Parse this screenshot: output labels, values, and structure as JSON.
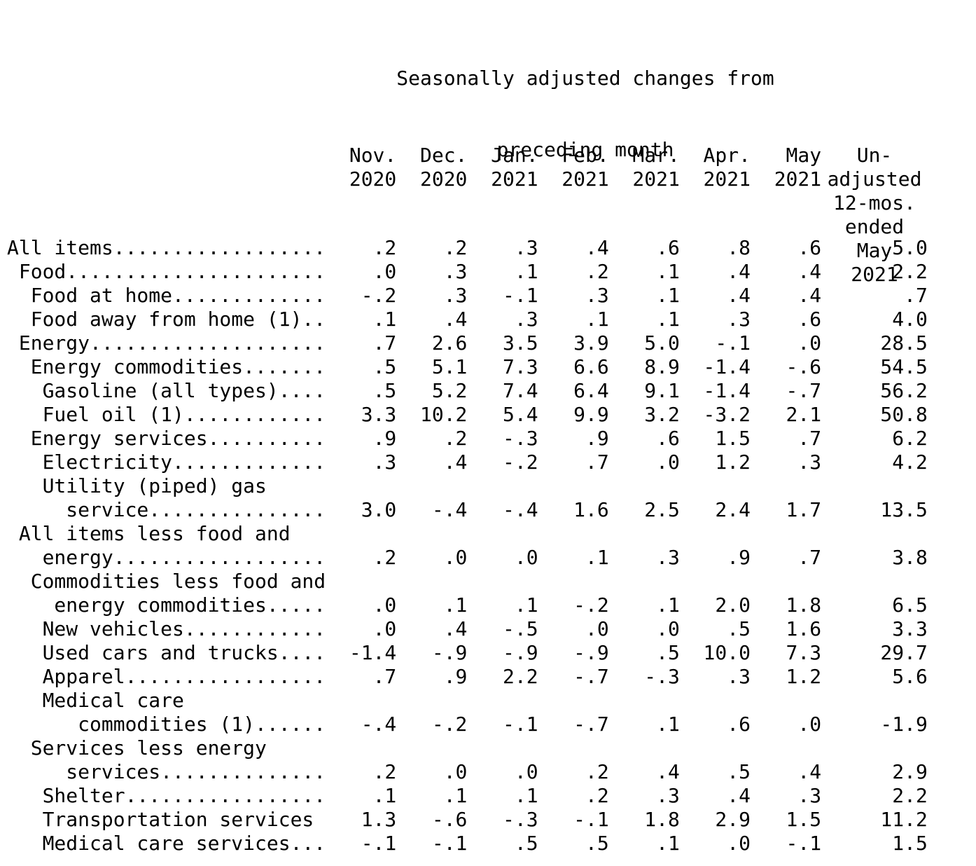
{
  "title": {
    "line1": "Seasonally adjusted changes from",
    "line2": "preceding month"
  },
  "columns": {
    "months": [
      {
        "name": "Nov.",
        "year": "2020"
      },
      {
        "name": "Dec.",
        "year": "2020"
      },
      {
        "name": "Jan.",
        "year": "2021"
      },
      {
        "name": "Feb.",
        "year": "2021"
      },
      {
        "name": "Mar.",
        "year": "2021"
      },
      {
        "name": "Apr.",
        "year": "2021"
      },
      {
        "name": "May",
        "year": "2021"
      }
    ],
    "unadjusted": {
      "lines": [
        "Un-",
        "adjusted",
        "12-mos.",
        "ended",
        "May",
        "2021"
      ]
    }
  },
  "rows": [
    {
      "label": "All items..................",
      "values": [
        ".2",
        ".2",
        ".3",
        ".4",
        ".6",
        ".8",
        ".6",
        "5.0"
      ]
    },
    {
      "label": " Food......................",
      "values": [
        ".0",
        ".3",
        ".1",
        ".2",
        ".1",
        ".4",
        ".4",
        "2.2"
      ]
    },
    {
      "label": "  Food at home.............",
      "values": [
        "-.2",
        ".3",
        "-.1",
        ".3",
        ".1",
        ".4",
        ".4",
        ".7"
      ]
    },
    {
      "label": "  Food away from home (1)..",
      "values": [
        ".1",
        ".4",
        ".3",
        ".1",
        ".1",
        ".3",
        ".6",
        "4.0"
      ]
    },
    {
      "label": " Energy....................",
      "values": [
        ".7",
        "2.6",
        "3.5",
        "3.9",
        "5.0",
        "-.1",
        ".0",
        "28.5"
      ]
    },
    {
      "label": "  Energy commodities.......",
      "values": [
        ".5",
        "5.1",
        "7.3",
        "6.6",
        "8.9",
        "-1.4",
        "-.6",
        "54.5"
      ]
    },
    {
      "label": "   Gasoline (all types)....",
      "values": [
        ".5",
        "5.2",
        "7.4",
        "6.4",
        "9.1",
        "-1.4",
        "-.7",
        "56.2"
      ]
    },
    {
      "label": "   Fuel oil (1)............",
      "values": [
        "3.3",
        "10.2",
        "5.4",
        "9.9",
        "3.2",
        "-3.2",
        "2.1",
        "50.8"
      ]
    },
    {
      "label": "  Energy services..........",
      "values": [
        ".9",
        ".2",
        "-.3",
        ".9",
        ".6",
        "1.5",
        ".7",
        "6.2"
      ]
    },
    {
      "label": "   Electricity.............",
      "values": [
        ".3",
        ".4",
        "-.2",
        ".7",
        ".0",
        "1.2",
        ".3",
        "4.2"
      ]
    },
    {
      "label": "   Utility (piped) gas",
      "values": []
    },
    {
      "label": "     service...............",
      "values": [
        "3.0",
        "-.4",
        "-.4",
        "1.6",
        "2.5",
        "2.4",
        "1.7",
        "13.5"
      ]
    },
    {
      "label": " All items less food and",
      "values": []
    },
    {
      "label": "   energy..................",
      "values": [
        ".2",
        ".0",
        ".0",
        ".1",
        ".3",
        ".9",
        ".7",
        "3.8"
      ]
    },
    {
      "label": "  Commodities less food and",
      "values": []
    },
    {
      "label": "    energy commodities.....",
      "values": [
        ".0",
        ".1",
        ".1",
        "-.2",
        ".1",
        "2.0",
        "1.8",
        "6.5"
      ]
    },
    {
      "label": "   New vehicles............",
      "values": [
        ".0",
        ".4",
        "-.5",
        ".0",
        ".0",
        ".5",
        "1.6",
        "3.3"
      ]
    },
    {
      "label": "   Used cars and trucks....",
      "values": [
        "-1.4",
        "-.9",
        "-.9",
        "-.9",
        ".5",
        "10.0",
        "7.3",
        "29.7"
      ]
    },
    {
      "label": "   Apparel.................",
      "values": [
        ".7",
        ".9",
        "2.2",
        "-.7",
        "-.3",
        ".3",
        "1.2",
        "5.6"
      ]
    },
    {
      "label": "   Medical care",
      "values": []
    },
    {
      "label": "      commodities (1)......",
      "values": [
        "-.4",
        "-.2",
        "-.1",
        "-.7",
        ".1",
        ".6",
        ".0",
        "-1.9"
      ]
    },
    {
      "label": "  Services less energy",
      "values": []
    },
    {
      "label": "     services..............",
      "values": [
        ".2",
        ".0",
        ".0",
        ".2",
        ".4",
        ".5",
        ".4",
        "2.9"
      ]
    },
    {
      "label": "   Shelter.................",
      "values": [
        ".1",
        ".1",
        ".1",
        ".2",
        ".3",
        ".4",
        ".3",
        "2.2"
      ]
    },
    {
      "label": "   Transportation services",
      "values": [
        "1.3",
        "-.6",
        "-.3",
        "-.1",
        "1.8",
        "2.9",
        "1.5",
        "11.2"
      ]
    },
    {
      "label": "   Medical care services...",
      "values": [
        "-.1",
        "-.1",
        ".5",
        ".5",
        ".1",
        ".0",
        "-.1",
        "1.5"
      ]
    }
  ],
  "text_color": "#000000",
  "background_color": "#ffffff"
}
